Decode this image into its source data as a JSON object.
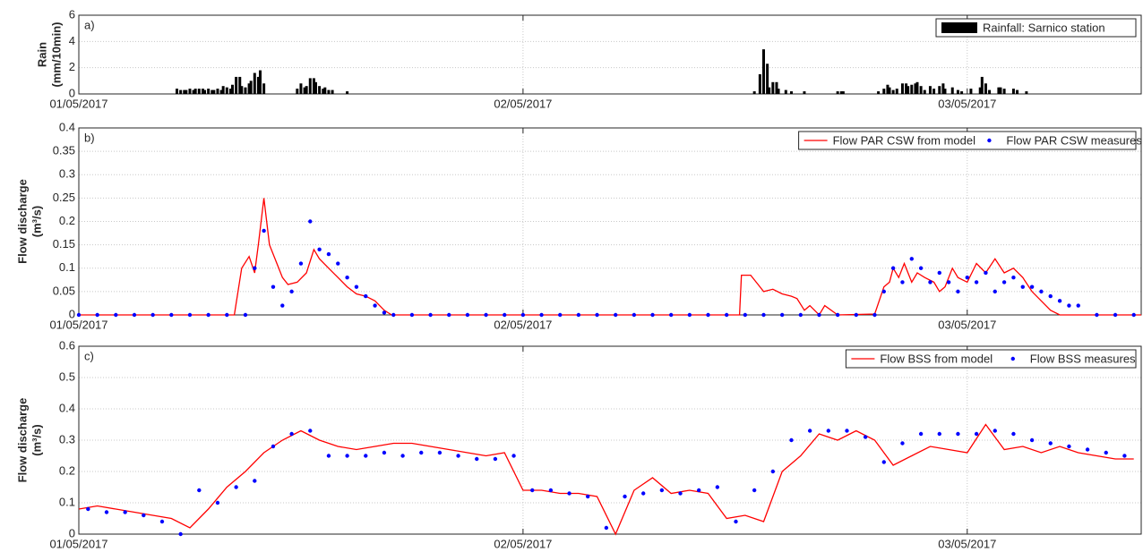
{
  "chart_data": [
    {
      "type": "bar",
      "panel_label": "a)",
      "ylabel": [
        "Rain",
        "(mm/10min)"
      ],
      "xlim": [
        0,
        57.4
      ],
      "xticks": [
        {
          "value": 0,
          "label": "01/05/2017"
        },
        {
          "value": 24,
          "label": "02/05/2017"
        },
        {
          "value": 48,
          "label": "03/05/2017"
        }
      ],
      "ylim": [
        0,
        6
      ],
      "yticks": [
        0,
        2,
        4,
        6
      ],
      "grid": true,
      "legend": "upper right",
      "series": [
        {
          "name": "Rainfall: Sarnico station",
          "color": "#000000",
          "x": [
            5.3,
            5.5,
            5.7,
            5.8,
            6.0,
            6.2,
            6.3,
            6.5,
            6.7,
            6.8,
            7.0,
            7.2,
            7.3,
            7.5,
            7.7,
            7.8,
            8.0,
            8.2,
            8.3,
            8.5,
            8.7,
            8.8,
            9.0,
            9.2,
            9.3,
            9.5,
            9.7,
            9.8,
            10.0,
            11.8,
            12.0,
            12.2,
            12.3,
            12.5,
            12.7,
            12.8,
            13.0,
            13.2,
            13.3,
            13.5,
            13.7,
            14.5,
            36.5,
            36.8,
            37.0,
            37.2,
            37.3,
            37.5,
            37.7,
            37.8,
            38.2,
            38.5,
            39.2,
            41.0,
            41.2,
            41.3,
            43.2,
            43.5,
            43.7,
            43.8,
            44.0,
            44.2,
            44.5,
            44.7,
            44.8,
            45.0,
            45.2,
            45.3,
            45.5,
            45.7,
            46.0,
            46.2,
            46.5,
            46.7,
            46.8,
            47.2,
            47.5,
            47.7,
            48.2,
            48.7,
            48.8,
            49.0,
            49.2,
            49.7,
            49.8,
            50.0,
            50.5,
            50.7,
            51.2
          ],
          "values": [
            0.4,
            0.3,
            0.3,
            0.3,
            0.4,
            0.3,
            0.4,
            0.4,
            0.4,
            0.3,
            0.4,
            0.3,
            0.3,
            0.4,
            0.3,
            0.6,
            0.5,
            0.4,
            0.7,
            1.3,
            1.3,
            0.6,
            0.5,
            0.8,
            1.0,
            1.6,
            1.3,
            1.8,
            0.8,
            0.4,
            0.8,
            0.5,
            0.6,
            1.2,
            1.2,
            0.9,
            0.6,
            0.4,
            0.5,
            0.3,
            0.3,
            0.2,
            0.2,
            1.5,
            3.4,
            2.3,
            0.5,
            0.9,
            0.9,
            0.4,
            0.3,
            0.2,
            0.2,
            0.2,
            0.2,
            0.2,
            0.2,
            0.4,
            0.7,
            0.5,
            0.3,
            0.4,
            0.8,
            0.8,
            0.6,
            0.7,
            0.8,
            0.9,
            0.6,
            0.3,
            0.6,
            0.4,
            0.6,
            0.8,
            0.4,
            0.5,
            0.3,
            0.2,
            0.4,
            0.5,
            1.3,
            0.8,
            0.3,
            0.5,
            0.5,
            0.4,
            0.4,
            0.3,
            0.2
          ]
        }
      ]
    },
    {
      "type": "line",
      "panel_label": "b)",
      "ylabel": [
        "Flow discharge",
        "(m³/s)"
      ],
      "xlim": [
        0,
        57.4
      ],
      "xticks": [
        {
          "value": 0,
          "label": "01/05/2017"
        },
        {
          "value": 24,
          "label": "02/05/2017"
        },
        {
          "value": 48,
          "label": "03/05/2017"
        }
      ],
      "ylim": [
        0,
        0.4
      ],
      "yticks": [
        0,
        0.05,
        0.1,
        0.15,
        0.2,
        0.25,
        0.3,
        0.35,
        0.4
      ],
      "grid": true,
      "legend": "upper right",
      "series": [
        {
          "name": "Flow PAR CSW from model",
          "color": "#ff0000",
          "kind": "line",
          "x": [
            0,
            8.4,
            8.8,
            9.2,
            9.5,
            9.7,
            10.0,
            10.3,
            10.7,
            11.0,
            11.3,
            11.8,
            12.3,
            12.7,
            13.0,
            13.5,
            14.0,
            14.5,
            15.0,
            15.5,
            16.0,
            16.5,
            16.9,
            35.7,
            35.8,
            36.3,
            36.7,
            37.0,
            37.5,
            38.0,
            38.5,
            38.8,
            39.2,
            39.5,
            40.0,
            40.3,
            41.0,
            43.0,
            43.5,
            43.8,
            44.0,
            44.3,
            44.6,
            45.0,
            45.3,
            45.7,
            46.2,
            46.5,
            46.8,
            47.2,
            47.5,
            48.0,
            48.5,
            49.0,
            49.5,
            50.0,
            50.5,
            51.0,
            51.5,
            52.0,
            52.5,
            53.0,
            57.4
          ],
          "values": [
            0,
            0,
            0.1,
            0.125,
            0.09,
            0.15,
            0.25,
            0.15,
            0.11,
            0.08,
            0.065,
            0.07,
            0.09,
            0.14,
            0.12,
            0.1,
            0.08,
            0.06,
            0.045,
            0.04,
            0.03,
            0.01,
            0,
            0,
            0.085,
            0.085,
            0.065,
            0.05,
            0.055,
            0.045,
            0.04,
            0.035,
            0.01,
            0.02,
            0,
            0.02,
            0,
            0.002,
            0.06,
            0.07,
            0.1,
            0.08,
            0.11,
            0.07,
            0.09,
            0.08,
            0.07,
            0.05,
            0.06,
            0.1,
            0.08,
            0.07,
            0.11,
            0.09,
            0.12,
            0.09,
            0.1,
            0.08,
            0.05,
            0.03,
            0.01,
            0,
            0
          ]
        },
        {
          "name": "Flow PAR CSW measures",
          "color": "#0000ff",
          "kind": "points",
          "x": [
            0,
            1,
            2,
            3,
            4,
            5,
            6,
            7,
            8,
            9,
            9.5,
            10,
            10.5,
            11,
            11.5,
            12,
            12.5,
            13,
            13.5,
            14,
            14.5,
            15,
            15.5,
            16,
            16.5,
            17,
            18,
            19,
            20,
            21,
            22,
            23,
            24,
            25,
            26,
            27,
            28,
            29,
            30,
            31,
            32,
            33,
            34,
            35,
            36,
            37,
            38,
            39,
            40,
            41,
            42,
            43,
            43.5,
            44,
            44.5,
            45,
            45.5,
            46,
            46.5,
            47,
            47.5,
            48,
            48.5,
            49,
            49.5,
            50,
            50.5,
            51,
            51.5,
            52,
            52.5,
            53,
            53.5,
            54,
            55,
            56,
            57
          ],
          "values": [
            0,
            0,
            0,
            0,
            0,
            0,
            0,
            0,
            0,
            0,
            0.1,
            0.18,
            0.06,
            0.02,
            0.05,
            0.11,
            0.2,
            0.14,
            0.13,
            0.11,
            0.08,
            0.06,
            0.04,
            0.02,
            0.005,
            0,
            0,
            0,
            0,
            0,
            0,
            0,
            0,
            0,
            0,
            0,
            0,
            0,
            0,
            0,
            0,
            0,
            0,
            0,
            0,
            0,
            0,
            0,
            0,
            0,
            0,
            0,
            0.05,
            0.1,
            0.07,
            0.12,
            0.1,
            0.07,
            0.09,
            0.07,
            0.05,
            0.08,
            0.07,
            0.09,
            0.05,
            0.07,
            0.08,
            0.06,
            0.06,
            0.05,
            0.04,
            0.03,
            0.02,
            0.02,
            0,
            0,
            0
          ]
        }
      ]
    },
    {
      "type": "line",
      "panel_label": "c)",
      "ylabel": [
        "Flow discharge",
        "(m³/s)"
      ],
      "xlim": [
        0,
        57.4
      ],
      "xticks": [
        {
          "value": 0,
          "label": "01/05/2017"
        },
        {
          "value": 24,
          "label": "02/05/2017"
        },
        {
          "value": 48,
          "label": "03/05/2017"
        }
      ],
      "ylim": [
        0,
        0.6
      ],
      "yticks": [
        0,
        0.1,
        0.2,
        0.3,
        0.4,
        0.5,
        0.6
      ],
      "grid": true,
      "legend": "upper right",
      "series": [
        {
          "name": "Flow BSS from model",
          "color": "#ff0000",
          "kind": "line",
          "x": [
            0,
            1,
            2,
            3,
            4,
            5,
            6,
            7,
            8,
            9,
            10,
            11,
            12,
            13,
            14,
            15,
            16,
            17,
            18,
            19,
            20,
            21,
            22,
            23,
            24,
            25,
            26,
            27,
            28,
            29,
            30,
            31,
            32,
            33,
            34,
            35,
            36,
            37,
            38,
            39,
            40,
            41,
            42,
            43,
            44,
            45,
            46,
            47,
            48,
            49,
            50,
            51,
            52,
            53,
            54,
            55,
            56,
            57
          ],
          "values": [
            0.08,
            0.09,
            0.08,
            0.07,
            0.06,
            0.05,
            0.02,
            0.08,
            0.15,
            0.2,
            0.26,
            0.3,
            0.33,
            0.3,
            0.28,
            0.27,
            0.28,
            0.29,
            0.29,
            0.28,
            0.27,
            0.26,
            0.25,
            0.26,
            0.14,
            0.14,
            0.13,
            0.13,
            0.12,
            0.0,
            0.14,
            0.18,
            0.13,
            0.14,
            0.13,
            0.05,
            0.06,
            0.04,
            0.2,
            0.25,
            0.32,
            0.3,
            0.33,
            0.3,
            0.22,
            0.25,
            0.28,
            0.27,
            0.26,
            0.35,
            0.27,
            0.28,
            0.26,
            0.28,
            0.26,
            0.25,
            0.24,
            0.24
          ]
        },
        {
          "name": "Flow BSS measures",
          "color": "#0000ff",
          "kind": "points",
          "x": [
            0.5,
            1.5,
            2.5,
            3.5,
            4.5,
            5.5,
            6.5,
            7.5,
            8.5,
            9.5,
            10.5,
            11.5,
            12.5,
            13.5,
            14.5,
            15.5,
            16.5,
            17.5,
            18.5,
            19.5,
            20.5,
            21.5,
            22.5,
            23.5,
            24.5,
            25.5,
            26.5,
            27.5,
            28.5,
            29.5,
            30.5,
            31.5,
            32.5,
            33.5,
            34.5,
            35.5,
            36.5,
            37.5,
            38.5,
            39.5,
            40.5,
            41.5,
            42.5,
            43.5,
            44.5,
            45.5,
            46.5,
            47.5,
            48.5,
            49.5,
            50.5,
            51.5,
            52.5,
            53.5,
            54.5,
            55.5,
            56.5
          ],
          "values": [
            0.08,
            0.07,
            0.07,
            0.06,
            0.04,
            0.0,
            0.14,
            0.1,
            0.15,
            0.17,
            0.28,
            0.32,
            0.33,
            0.25,
            0.25,
            0.25,
            0.26,
            0.25,
            0.26,
            0.26,
            0.25,
            0.24,
            0.24,
            0.25,
            0.14,
            0.14,
            0.13,
            0.12,
            0.02,
            0.12,
            0.13,
            0.14,
            0.13,
            0.14,
            0.15,
            0.04,
            0.14,
            0.2,
            0.3,
            0.33,
            0.33,
            0.33,
            0.31,
            0.23,
            0.29,
            0.32,
            0.32,
            0.32,
            0.32,
            0.33,
            0.32,
            0.3,
            0.29,
            0.28,
            0.27,
            0.26,
            0.25
          ]
        }
      ]
    }
  ]
}
